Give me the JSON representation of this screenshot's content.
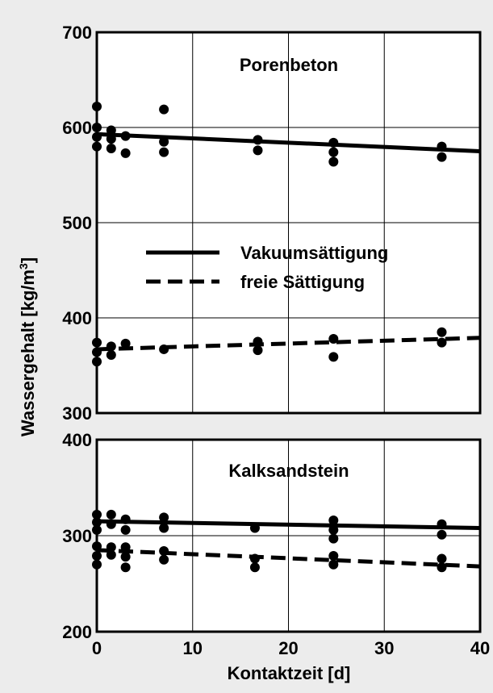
{
  "chart_data": [
    {
      "type": "scatter",
      "title": "Porenbeton",
      "xlabel": "Kontaktzeit  [d]",
      "ylabel": "Wassergehalt [kg/m³]",
      "xlim": [
        0,
        40
      ],
      "ylim": [
        300,
        700
      ],
      "x_ticks": [
        "0",
        "10",
        "20",
        "30",
        "40"
      ],
      "y_ticks": [
        "300",
        "400",
        "500",
        "600",
        "700"
      ],
      "grid": true,
      "legend_position": "middle",
      "series": [
        {
          "name": "Vakuumsättigung",
          "line_style": "solid",
          "fit": [
            [
              0,
              593
            ],
            [
              40,
              575
            ]
          ],
          "points": [
            [
              0,
              622
            ],
            [
              0,
              600
            ],
            [
              0,
              590
            ],
            [
              0,
              580
            ],
            [
              1.5,
              597
            ],
            [
              1.5,
              588
            ],
            [
              1.5,
              578
            ],
            [
              3,
              591
            ],
            [
              3,
              573
            ],
            [
              7,
              619
            ],
            [
              7,
              585
            ],
            [
              7,
              574
            ],
            [
              16.8,
              587
            ],
            [
              16.8,
              576
            ],
            [
              24.7,
              584
            ],
            [
              24.7,
              574
            ],
            [
              24.7,
              564
            ],
            [
              36,
              580
            ],
            [
              36,
              569
            ]
          ]
        },
        {
          "name": "freie Sättigung",
          "line_style": "dashed",
          "fit": [
            [
              0,
              367
            ],
            [
              40,
              379
            ]
          ],
          "points": [
            [
              0,
              374
            ],
            [
              0,
              364
            ],
            [
              0,
              354
            ],
            [
              1.5,
              370
            ],
            [
              1.5,
              361
            ],
            [
              3,
              373
            ],
            [
              7,
              367
            ],
            [
              16.8,
              375
            ],
            [
              16.8,
              366
            ],
            [
              24.7,
              378
            ],
            [
              24.7,
              359
            ],
            [
              36,
              385
            ],
            [
              36,
              374
            ]
          ]
        }
      ]
    },
    {
      "type": "scatter",
      "title": "Kalksandstein",
      "xlabel": "Kontaktzeit  [d]",
      "ylabel": "Wassergehalt [kg/m³]",
      "xlim": [
        0,
        40
      ],
      "ylim": [
        200,
        400
      ],
      "x_ticks": [
        "0",
        "10",
        "20",
        "30",
        "40"
      ],
      "y_ticks": [
        "200",
        "300",
        "400"
      ],
      "grid": true,
      "series": [
        {
          "name": "Vakuumsättigung",
          "line_style": "solid",
          "fit": [
            [
              0,
              315
            ],
            [
              40,
              308
            ]
          ],
          "points": [
            [
              0,
              322
            ],
            [
              0,
              314
            ],
            [
              0,
              306
            ],
            [
              1.5,
              322
            ],
            [
              1.5,
              312
            ],
            [
              3,
              317
            ],
            [
              3,
              306
            ],
            [
              7,
              319
            ],
            [
              7,
              308
            ],
            [
              16.5,
              308
            ],
            [
              24.7,
              316
            ],
            [
              24.7,
              306
            ],
            [
              24.7,
              297
            ],
            [
              36,
              312
            ],
            [
              36,
              301
            ]
          ]
        },
        {
          "name": "freie Sättigung",
          "line_style": "dashed",
          "fit": [
            [
              0,
              285
            ],
            [
              40,
              268
            ]
          ],
          "points": [
            [
              0,
              289
            ],
            [
              0,
              279
            ],
            [
              0,
              270
            ],
            [
              1.5,
              288
            ],
            [
              1.5,
              280
            ],
            [
              3,
              288
            ],
            [
              3,
              278
            ],
            [
              3,
              267
            ],
            [
              7,
              284
            ],
            [
              7,
              275
            ],
            [
              16.5,
              276
            ],
            [
              16.5,
              267
            ],
            [
              24.7,
              279
            ],
            [
              24.7,
              270
            ],
            [
              36,
              276
            ],
            [
              36,
              267
            ]
          ]
        }
      ]
    }
  ],
  "y_axis_title": {
    "text": "Wassergehalt [kg/m",
    "superscript": "3",
    "suffix": "]"
  },
  "colors": {
    "background": "#ececec",
    "plot_area": "#ffffff",
    "ink": "#000000"
  }
}
